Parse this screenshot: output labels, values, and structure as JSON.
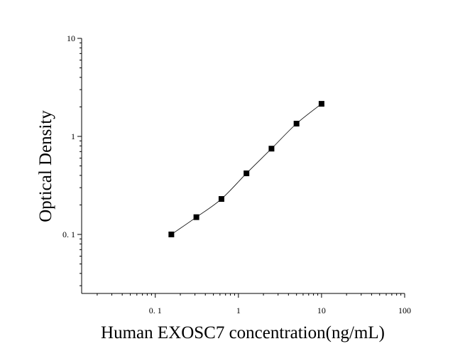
{
  "chart_data": {
    "type": "scatter",
    "xlabel": "Human EXOSC7 concentration(ng/mL)",
    "ylabel": "Optical Density",
    "x_scale": "log",
    "y_scale": "log",
    "xlim": [
      0.013,
      100
    ],
    "ylim": [
      0.025,
      10
    ],
    "x_ticks": [
      {
        "value": 0.1,
        "label": "0. 1"
      },
      {
        "value": 1,
        "label": "1"
      },
      {
        "value": 10,
        "label": "10"
      },
      {
        "value": 100,
        "label": "100"
      }
    ],
    "y_ticks": [
      {
        "value": 0.1,
        "label": "0. 1"
      },
      {
        "value": 1,
        "label": "1"
      },
      {
        "value": 10,
        "label": "10"
      }
    ],
    "grid": false,
    "series": [
      {
        "marker": "square",
        "color": "#000000",
        "x": [
          0.156,
          0.312,
          0.625,
          1.25,
          2.5,
          5,
          10
        ],
        "y": [
          0.1,
          0.15,
          0.23,
          0.42,
          0.75,
          1.35,
          2.15
        ]
      }
    ],
    "fit_curve": {
      "color": "#000000"
    }
  }
}
